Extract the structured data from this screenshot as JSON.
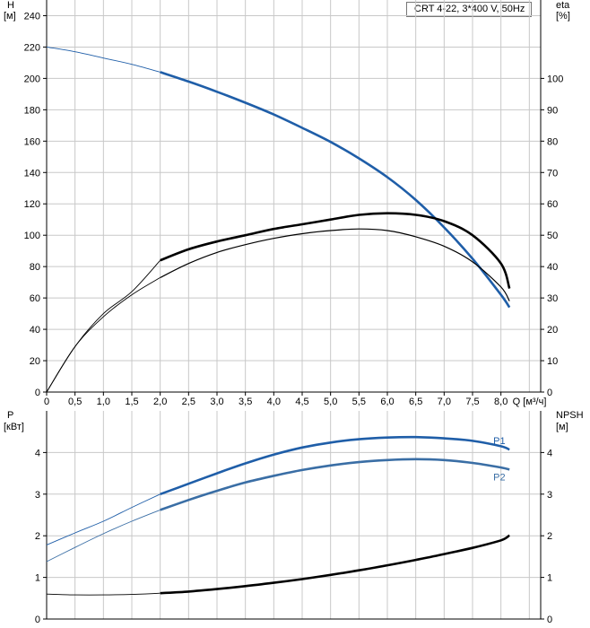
{
  "chart_data": [
    {
      "type": "line",
      "title": "CRT 4-22, 3*400 V, 50Hz",
      "xlabel": "Q [м³/ч]",
      "ylabel_left": "H\n[м]",
      "ylabel_right": "eta\n[%]",
      "xlim": [
        0,
        8.7
      ],
      "x_ticks": [
        "0",
        "0,5",
        "1,0",
        "1,5",
        "2,0",
        "2,5",
        "3,0",
        "3,5",
        "4,0",
        "4,5",
        "5,0",
        "5,5",
        "6,0",
        "6,5",
        "7,0",
        "7,5",
        "8,0"
      ],
      "ylim_left": [
        0,
        250
      ],
      "y_ticks_left": [
        0,
        20,
        40,
        60,
        80,
        100,
        120,
        140,
        160,
        180,
        200,
        220,
        240
      ],
      "ylim_right": [
        0,
        125
      ],
      "y_ticks_right": [
        0,
        10,
        20,
        30,
        40,
        50,
        60,
        70,
        80,
        90,
        100
      ],
      "grid": true,
      "colors": {
        "H": "#1f5ea8",
        "eta": "#000000",
        "eta_thin": "#000000"
      },
      "series": [
        {
          "id": "H",
          "axis": "left",
          "x": [
            0,
            0.5,
            1.0,
            1.5,
            2.0,
            2.5,
            3.0,
            3.5,
            4.0,
            4.5,
            5.0,
            5.5,
            6.0,
            6.5,
            7.0,
            7.5,
            8.0,
            8.15
          ],
          "values": [
            220,
            217,
            213,
            209,
            204,
            198,
            191.5,
            184.5,
            177,
            168.5,
            159.5,
            149,
            137,
            122.5,
            105,
            85,
            62,
            54
          ]
        },
        {
          "id": "eta",
          "axis": "right",
          "x": [
            0,
            0.5,
            1.0,
            1.5,
            2.0,
            2.5,
            3.0,
            3.5,
            4.0,
            4.5,
            5.0,
            5.5,
            6.0,
            6.5,
            7.0,
            7.5,
            8.0,
            8.15
          ],
          "values": [
            0,
            14.5,
            25,
            32,
            42,
            45.5,
            48,
            50,
            52,
            53.5,
            55,
            56.5,
            57,
            56.5,
            54.5,
            50,
            41,
            33
          ]
        },
        {
          "id": "eta_thin",
          "axis": "right",
          "x": [
            0,
            0.5,
            1.0,
            1.5,
            2.0,
            2.5,
            3.0,
            3.5,
            4.0,
            4.5,
            5.0,
            5.5,
            6.0,
            6.5,
            7.0,
            7.5,
            8.0,
            8.15
          ],
          "values": [
            0,
            14.5,
            24,
            31,
            36.5,
            41,
            44.5,
            47,
            49,
            50.5,
            51.5,
            52,
            51.5,
            49.5,
            46.5,
            41.5,
            33.5,
            29
          ]
        }
      ]
    },
    {
      "type": "line",
      "xlabel": "",
      "ylabel_left": "P\n[кВт]",
      "ylabel_right": "NPSH\n[м]",
      "xlim": [
        0,
        8.7
      ],
      "ylim_left": [
        0,
        5
      ],
      "y_ticks_left": [
        0,
        1,
        2,
        3,
        4
      ],
      "ylim_right": [
        0,
        5
      ],
      "y_ticks_right": [
        0,
        1,
        2,
        3,
        4
      ],
      "grid": true,
      "colors": {
        "P1": "#1f5ea8",
        "P2": "#3a6ea5",
        "NPSH": "#000000"
      },
      "series": [
        {
          "id": "P1",
          "name": "P1",
          "axis": "left",
          "x": [
            0,
            0.5,
            1.0,
            1.5,
            2.0,
            2.5,
            3.0,
            3.5,
            4.0,
            4.5,
            5.0,
            5.5,
            6.0,
            6.5,
            7.0,
            7.5,
            8.0,
            8.15
          ],
          "values": [
            1.78,
            2.07,
            2.35,
            2.68,
            3.0,
            3.25,
            3.5,
            3.74,
            3.95,
            4.12,
            4.24,
            4.32,
            4.36,
            4.37,
            4.34,
            4.28,
            4.15,
            4.07
          ]
        },
        {
          "id": "P2",
          "name": "P2",
          "axis": "left",
          "x": [
            0,
            0.5,
            1.0,
            1.5,
            2.0,
            2.5,
            3.0,
            3.5,
            4.0,
            4.5,
            5.0,
            5.5,
            6.0,
            6.5,
            7.0,
            7.5,
            8.0,
            8.15
          ],
          "values": [
            1.38,
            1.72,
            2.05,
            2.35,
            2.62,
            2.86,
            3.08,
            3.28,
            3.44,
            3.58,
            3.69,
            3.77,
            3.82,
            3.84,
            3.82,
            3.75,
            3.64,
            3.59
          ]
        },
        {
          "id": "NPSH",
          "axis": "right",
          "x": [
            0,
            0.5,
            1.0,
            1.5,
            2.0,
            2.5,
            3.0,
            3.5,
            4.0,
            4.5,
            5.0,
            5.5,
            6.0,
            6.5,
            7.0,
            7.5,
            8.0,
            8.15
          ],
          "values": [
            0.6,
            0.58,
            0.58,
            0.59,
            0.62,
            0.66,
            0.72,
            0.79,
            0.87,
            0.96,
            1.06,
            1.17,
            1.29,
            1.42,
            1.56,
            1.71,
            1.89,
            2.01
          ]
        }
      ]
    }
  ]
}
